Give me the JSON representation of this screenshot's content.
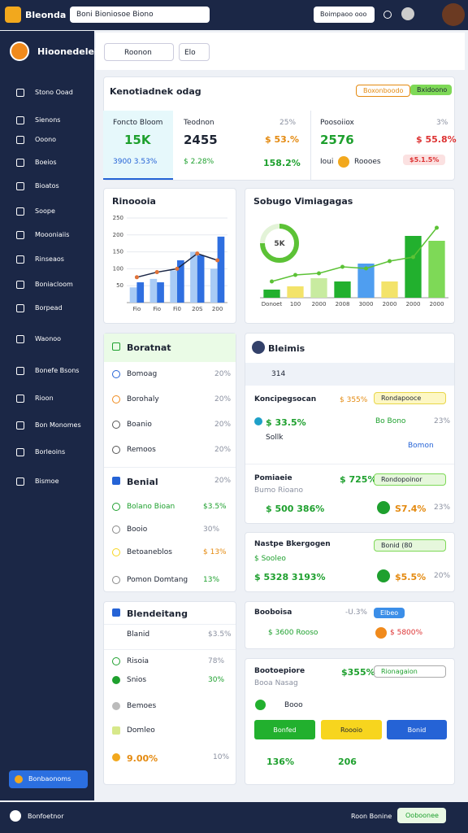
{
  "topbar": {
    "logo": "Bleonda",
    "search": "Boni Bioniosoe Biono",
    "button": "Boimpaoo ooo"
  },
  "sidebar": {
    "title": "Hioonedelel",
    "items": [
      "Stono Ooad",
      "Sienons",
      "Ooono",
      "Boeios",
      "Bioatos",
      "Soope",
      "Moooniaiis",
      "Rinseaos",
      "Boniacloom",
      "Borpead",
      "Waonoo",
      "Bonefe Bsons",
      "Rioon",
      "Bon Monomes",
      "Borleoins",
      "Bismoe"
    ],
    "footer_button": "Bonbaonoms"
  },
  "toolbar": {
    "search": "Roonon",
    "filter": "Elo"
  },
  "overview": {
    "title": "Kenotiadnek odag",
    "button_outline": "Boxonboodo",
    "button_green": "Bxidoono",
    "stats": [
      {
        "label": "Foncto Bloom",
        "value": "15K",
        "sub": "3900 3.53%"
      },
      {
        "label": "Teodnon",
        "value": "2455",
        "pct": "25%",
        "change": "$ 53.%",
        "sub": "$ 2.28%",
        "sub2": "158.2%"
      },
      {
        "label": "Poosoiiox",
        "value": "2576",
        "pct": "3%",
        "change": "$ 55.8%",
        "sub": "Ioui",
        "pill": "Roooes",
        "pill2": "$5.1.5%"
      }
    ]
  },
  "chart_data": [
    {
      "type": "bar",
      "title": "Rinoooia",
      "categories": [
        "Fio",
        "Fio",
        "Fi0",
        "20S",
        "200"
      ],
      "ylim": [
        0,
        250
      ],
      "yticks": [
        50,
        100,
        150,
        200,
        250
      ],
      "grid": true,
      "series": [
        {
          "color": "#a9cbf5",
          "values": [
            45,
            70,
            95,
            150,
            100
          ]
        },
        {
          "color": "#2f6fe0",
          "values": [
            60,
            60,
            125,
            140,
            195
          ]
        },
        {
          "type": "line",
          "color": "#1b2746",
          "marker": "#e0733a",
          "values": [
            75,
            90,
            100,
            145,
            125
          ]
        }
      ]
    },
    {
      "type": "bar",
      "title": "Sobugo Vimiagagas",
      "categories": [
        "Donoet",
        "100",
        "2000",
        "2008",
        "3000",
        "2000",
        "2000",
        "2000"
      ],
      "ylim": [
        0,
        100
      ],
      "grid": false,
      "series": [
        {
          "colors": [
            "#22b02e",
            "#f3e36a",
            "#c8eba0",
            "#22b02e",
            "#4f9ef0",
            "#f3e36a",
            "#22b02e",
            "#7ed957"
          ],
          "values": [
            10,
            14,
            24,
            20,
            42,
            20,
            76,
            70
          ]
        },
        {
          "type": "line",
          "color": "#5cc236",
          "marker": "#5cc236",
          "values": [
            20,
            28,
            30,
            38,
            36,
            45,
            50,
            86
          ]
        }
      ]
    },
    {
      "type": "pie",
      "label": "5K",
      "values": [
        75,
        25
      ],
      "colors": [
        "#5cc236",
        "#e3f3d8"
      ]
    }
  ],
  "list_a": {
    "header": "Boratnat",
    "rows": [
      [
        "Bomoag",
        "20%"
      ],
      [
        "Borohaly",
        "20%"
      ],
      [
        "Boanio",
        "20%"
      ],
      [
        "Remoos",
        "20%"
      ]
    ],
    "section": "Benial",
    "section_pct": "20%",
    "rows2": [
      [
        "Bolano Bioan",
        "$3.5%"
      ],
      [
        "Booio",
        "30%"
      ],
      [
        "Betoaneblos",
        "$ 13%"
      ],
      [
        "Pomon Domtang",
        "13%"
      ]
    ]
  },
  "card_a": {
    "header": "Bleimis",
    "tool": "314",
    "s1": "Koncipegsocan",
    "s1v": "$ 355%",
    "s1p": "Rondapooce",
    "s1a": "$ 33.5%",
    "s1b": "Bo Bono",
    "s1c": "23%",
    "s1d": "Sollk",
    "s1e": "Bomon",
    "s2": "Pomiaeie",
    "s2v": "$ 725%",
    "s2p": "Rondopoinor",
    "s2a": "Bumo Rioano",
    "s2b": "$ 500 386%",
    "s2c": "S7.4%",
    "s2d": "23%"
  },
  "card_b": {
    "title": "Nastpe Bkergogen",
    "pill": "Bonid (80",
    "a": "$ Sooleo",
    "b": "$ 5328 3193%",
    "c": "$5.5%",
    "d": "20%"
  },
  "list_b": {
    "header": "Blendeitang",
    "r1": "Blanid",
    "r1v": "$3.5%",
    "r2": "Risoia",
    "r2v": "78%",
    "r3": "Snios",
    "r3v": "30%",
    "r4": "Bemoes",
    "r5": "Domleo",
    "r6": "9.00%",
    "r6v": "10%"
  },
  "card_c": {
    "title": "Booboisa",
    "pct": "-U.3%",
    "pill": "Elbeo",
    "a": "$ 3600 Rooso",
    "b": "$ 5800%"
  },
  "card_d": {
    "title": "Bootoepiore",
    "v": "$355%",
    "pill": "Rionagaion",
    "sub": "Booa Nasag",
    "a": "Booo",
    "buttons": [
      "Bonfed",
      "Roooio",
      "Bonid"
    ],
    "f1": "136%",
    "f2": "206"
  },
  "footer": {
    "left": "Bonfoetnor",
    "right": "Roon Bonine",
    "button": "Ooboonee"
  }
}
